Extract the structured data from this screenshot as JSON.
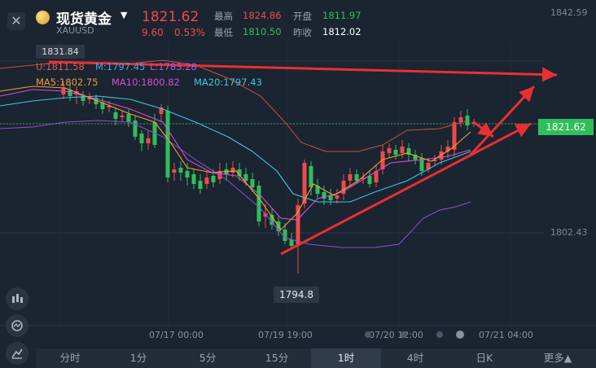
{
  "header": {
    "close_icon": "✕",
    "name": "现货黄金",
    "symbol": "XAUUSD",
    "price": "1821.62",
    "change": "9.60",
    "change_pct": "0.53%",
    "high_label": "最高",
    "high": "1824.86",
    "open_label": "开盘",
    "open": "1811.97",
    "low_label": "最低",
    "low": "1810.50",
    "prev_label": "昨收",
    "prev": "1812.02"
  },
  "indicators": {
    "boll": {
      "u": "U:1811.58",
      "m": "M:1797.45",
      "l": "L:1783.28"
    },
    "ma5": "MA5:1802.75",
    "ma10": "MA10:1800.82",
    "ma20": "MA20:1797.43"
  },
  "tags": {
    "high": "1831.84",
    "low": "1794.8",
    "current": "1821.62"
  },
  "axis": {
    "y_top": "1842.59",
    "y_mid": "1802.43",
    "x_labels": [
      "07/17 00:00",
      "07/19 19:00",
      "07/20 12:00",
      "07/21 04:00"
    ]
  },
  "timeframes": [
    "分时",
    "1分",
    "5分",
    "15分",
    "1时",
    "4时",
    "日K",
    "更多▲"
  ],
  "active_timeframe": "1时",
  "colors": {
    "up": "#ef4a4a",
    "down": "#2fbf59",
    "bg": "#1b2431"
  }
}
